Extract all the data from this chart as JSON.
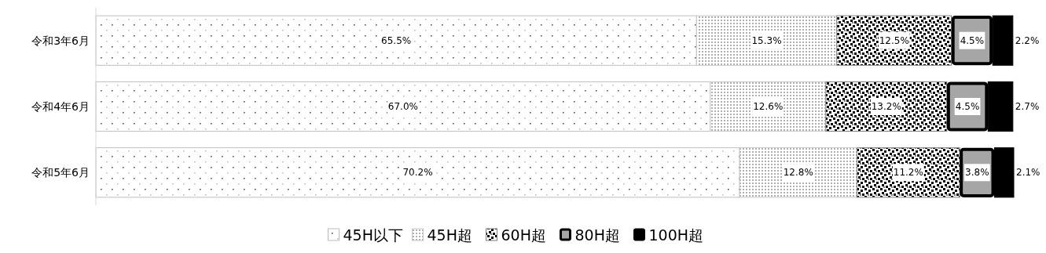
{
  "chart_data": {
    "type": "bar",
    "orientation": "horizontal",
    "stacked": true,
    "categories": [
      "令和3年6月",
      "令和4年6月",
      "令和5年6月"
    ],
    "series": [
      {
        "name": "45H以下",
        "color": "#bfbfbf",
        "values": [
          65.5,
          67.0,
          70.2
        ],
        "value_labels": [
          "65.5%",
          "67.0%",
          "70.2%"
        ]
      },
      {
        "name": "45H超",
        "color": "#c8c8c8",
        "values": [
          15.3,
          12.6,
          12.8
        ],
        "value_labels": [
          "15.3%",
          "12.6%",
          "12.8%"
        ]
      },
      {
        "name": "60H超",
        "color": "#7f7f7f",
        "values": [
          12.5,
          13.2,
          11.2
        ],
        "value_labels": [
          "12.5%",
          "13.2%",
          "11.2%"
        ]
      },
      {
        "name": "80H超",
        "color": "#a6a6a6",
        "values": [
          4.5,
          4.5,
          3.8
        ],
        "value_labels": [
          "4.5%",
          "4.5%",
          "3.8%"
        ]
      },
      {
        "name": "100H超",
        "color": "#000000",
        "values": [
          2.2,
          2.7,
          2.1
        ],
        "value_labels": [
          "2.2%",
          "2.7%",
          "2.1%"
        ]
      }
    ],
    "tick_labels": "y",
    "grid": false,
    "legend": "bottom"
  }
}
